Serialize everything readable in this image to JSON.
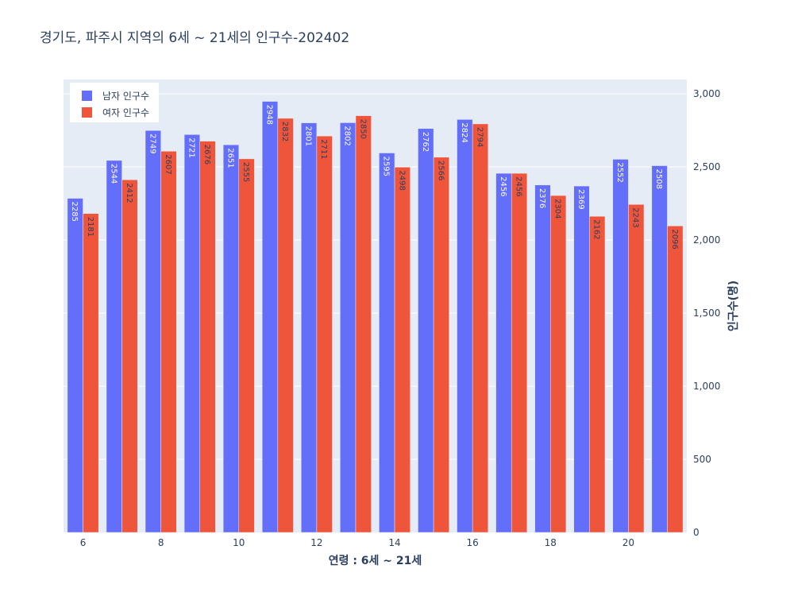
{
  "chart_data": {
    "type": "bar",
    "title": "경기도,  파주시 지역의 6세 ~ 21세의 인구수-202402",
    "xlabel": "연령 : 6세 ~ 21세",
    "ylabel": "인구수(명)",
    "x": [
      6,
      7,
      8,
      9,
      10,
      11,
      12,
      13,
      14,
      15,
      16,
      17,
      18,
      19,
      20,
      21
    ],
    "x_ticks": [
      6,
      8,
      10,
      12,
      14,
      16,
      18,
      20
    ],
    "y_ticks": [
      0,
      500,
      1000,
      1500,
      2000,
      2500,
      3000
    ],
    "y_tick_labels": [
      "0",
      "500",
      "1,000",
      "1,500",
      "2,000",
      "2,500",
      "3,000"
    ],
    "ylim": [
      0,
      3000
    ],
    "y_axis_side": "right",
    "grid": true,
    "legend_position": "top-left",
    "series": [
      {
        "name": "남자 인구수",
        "color": "#636efa",
        "values": [
          2285,
          2544,
          2749,
          2721,
          2651,
          2948,
          2801,
          2802,
          2595,
          2762,
          2824,
          2456,
          2376,
          2369,
          2552,
          2508
        ]
      },
      {
        "name": "여자 인구수",
        "color": "#ef553b",
        "values": [
          2181,
          2412,
          2607,
          2676,
          2555,
          2832,
          2711,
          2850,
          2498,
          2566,
          2794,
          2456,
          2304,
          2162,
          2243,
          2096
        ]
      }
    ]
  },
  "colors": {
    "plot_bg": "#e5ecf6",
    "grid": "#ffffff",
    "text": "#2a3f5f"
  }
}
